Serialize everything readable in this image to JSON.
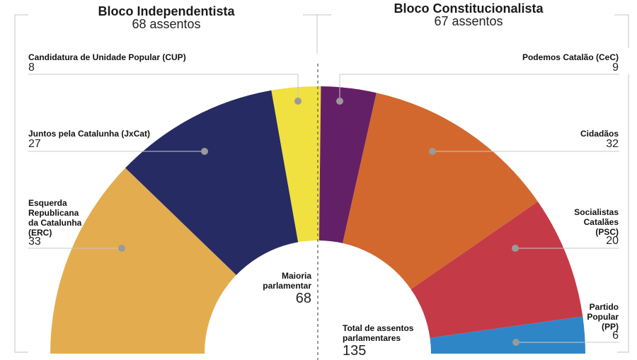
{
  "blocks": {
    "left": {
      "title": "Bloco Independentista",
      "subtitle": "68 assentos"
    },
    "right": {
      "title": "Bloco Constitucionalista",
      "subtitle": "67 assentos"
    }
  },
  "center": {
    "majority_label_1": "Maioria",
    "majority_label_2": "parlamentar",
    "majority_value": "68",
    "total_label_1": "Total de assentos",
    "total_label_2": "parlamentares",
    "total_value": "135"
  },
  "chart_data": {
    "type": "pie",
    "subtype": "parliament-semicircle",
    "title": "",
    "total": 135,
    "majority": 68,
    "slices": [
      {
        "name": "Esquerda Republicana da Catalunha (ERC)",
        "label_lines": [
          "Esquerda",
          "Republicana",
          "da Catalunha",
          "(ERC)"
        ],
        "value": 33,
        "color": "#E3AD4F",
        "block": "Bloco Independentista"
      },
      {
        "name": "Juntos pela Catalunha (JxCat)",
        "label_lines": [
          "Juntos pela Catalunha (JxCat)"
        ],
        "value": 27,
        "color": "#262B63",
        "block": "Bloco Independentista"
      },
      {
        "name": "Candidatura de Unidade Popular (CUP)",
        "label_lines": [
          "Candidatura de Unidade Popular (CUP)"
        ],
        "value": 8,
        "color": "#F0E040",
        "block": "Bloco Independentista"
      },
      {
        "name": "Podemos Catalão (CeC)",
        "label_lines": [
          "Podemos Catalão (CeC)"
        ],
        "value": 9,
        "color": "#642066",
        "block": "Bloco Constitucionalista"
      },
      {
        "name": "Cidadãos",
        "label_lines": [
          "Cidadãos"
        ],
        "value": 32,
        "color": "#D2682E",
        "block": "Bloco Constitucionalista"
      },
      {
        "name": "Socialistas Catalães (PSC)",
        "label_lines": [
          "Socialistas",
          "Catalães",
          "(PSC)"
        ],
        "value": 20,
        "color": "#C53A47",
        "block": "Bloco Constitucionalista"
      },
      {
        "name": "Partido Popular (PP)",
        "label_lines": [
          "Partido",
          "Popular",
          "(PP)"
        ],
        "value": 6,
        "color": "#2F86C6",
        "block": "Bloco Constitucionalista"
      }
    ],
    "legend": "labels-beside-slices"
  }
}
